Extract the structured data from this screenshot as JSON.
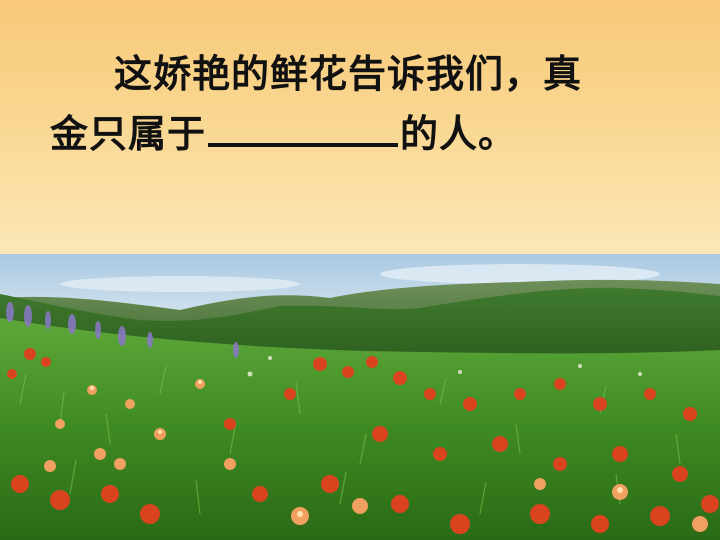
{
  "slide": {
    "line1": "这娇艳的鲜花告诉我们，真",
    "line2_before_blank": "金只属于",
    "line2_after_blank": "的人。"
  },
  "image": {
    "description_icon": "meadow-landscape"
  },
  "colors": {
    "top_band": "#f9d690",
    "text": "#111111",
    "sky": "#bcd8ea",
    "grass": "#3f8f24",
    "flowers": "#d8451f"
  }
}
